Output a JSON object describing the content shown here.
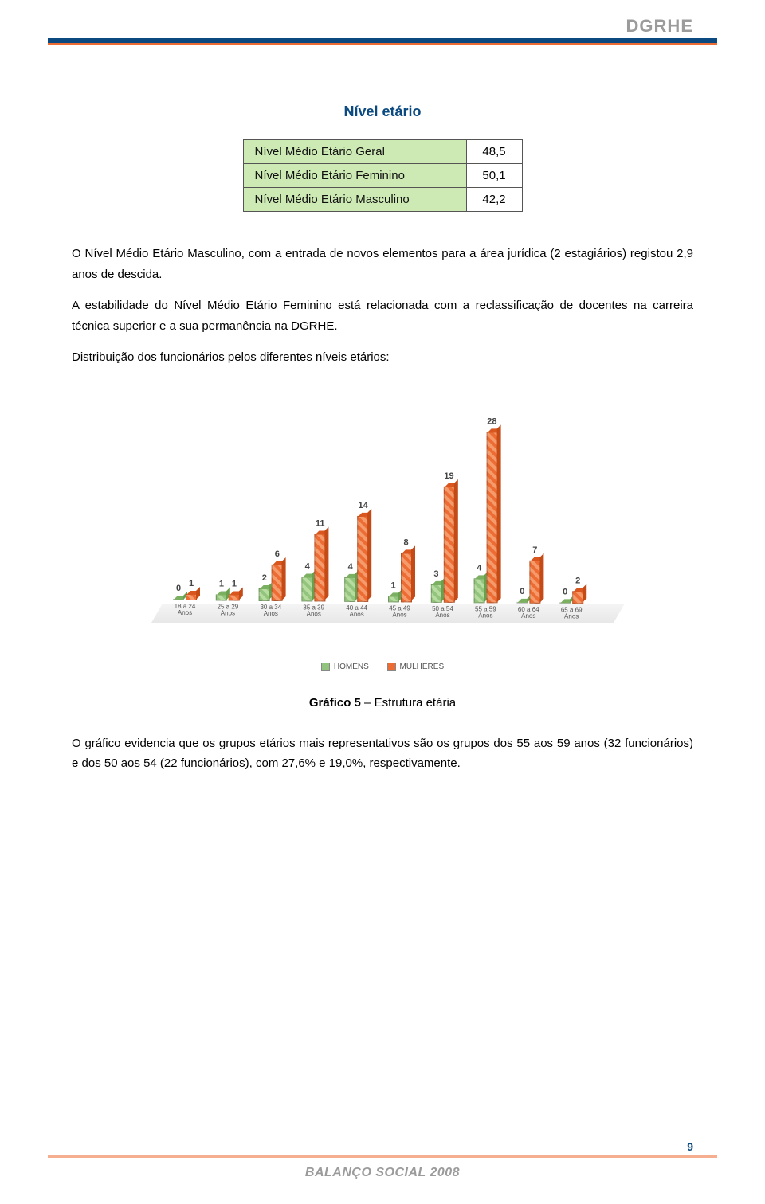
{
  "header": {
    "logo": "DGRHE"
  },
  "section": {
    "title": "Nível etário"
  },
  "table": {
    "rows": [
      {
        "label": "Nível Médio Etário Geral",
        "value": "48,5"
      },
      {
        "label": "Nível Médio Etário Feminino",
        "value": "50,1"
      },
      {
        "label": "Nível Médio Etário Masculino",
        "value": "42,2"
      }
    ]
  },
  "paragraphs": {
    "p1": "O Nível Médio Etário Masculino, com a entrada de novos elementos para a área jurídica (2 estagiários) registou 2,9 anos de descida.",
    "p2": "A estabilidade do Nível Médio Etário Feminino está relacionada com a reclassificação de docentes na carreira técnica superior e a sua permanência na DGRHE.",
    "p3": "Distribuição dos funcionários pelos diferentes níveis etários:",
    "p4": "O gráfico evidencia que os grupos etários mais representativos são os grupos dos 55 aos 59 anos (32 funcionários) e dos 50 aos 54 (22 funcionários), com 27,6% e 19,0%, respectivamente."
  },
  "chart": {
    "type": "bar",
    "series_labels": {
      "homens": "HOMENS",
      "mulheres": "MULHERES"
    },
    "colors": {
      "homens": "#93c47d",
      "mulheres": "#ec6c34",
      "floor": "#e0e0e0"
    },
    "ymax": 30,
    "categories": [
      {
        "label_top": "18 a 24",
        "label_bottom": "Anos",
        "homens": 0,
        "mulheres": 1
      },
      {
        "label_top": "25 a 29",
        "label_bottom": "Anos",
        "homens": 1,
        "mulheres": 1
      },
      {
        "label_top": "30 a 34",
        "label_bottom": "Anos",
        "homens": 2,
        "mulheres": 6
      },
      {
        "label_top": "35 a 39",
        "label_bottom": "Anos",
        "homens": 4,
        "mulheres": 11
      },
      {
        "label_top": "40 a 44",
        "label_bottom": "Anos",
        "homens": 4,
        "mulheres": 14
      },
      {
        "label_top": "45 a 49",
        "label_bottom": "Anos",
        "homens": 1,
        "mulheres": 8
      },
      {
        "label_top": "50 a 54",
        "label_bottom": "Anos",
        "homens": 3,
        "mulheres": 19
      },
      {
        "label_top": "55 a 59",
        "label_bottom": "Anos",
        "homens": 4,
        "mulheres": 28
      },
      {
        "label_top": "60 a 64",
        "label_bottom": "Anos",
        "homens": 0,
        "mulheres": 7
      },
      {
        "label_top": "65 a 69",
        "label_bottom": "Anos",
        "homens": 0,
        "mulheres": 2
      }
    ],
    "caption_prefix": "Gráfico 5",
    "caption_rest": " – Estrutura etária"
  },
  "footer": {
    "title": "BALANÇO SOCIAL 2008",
    "page": "9"
  }
}
